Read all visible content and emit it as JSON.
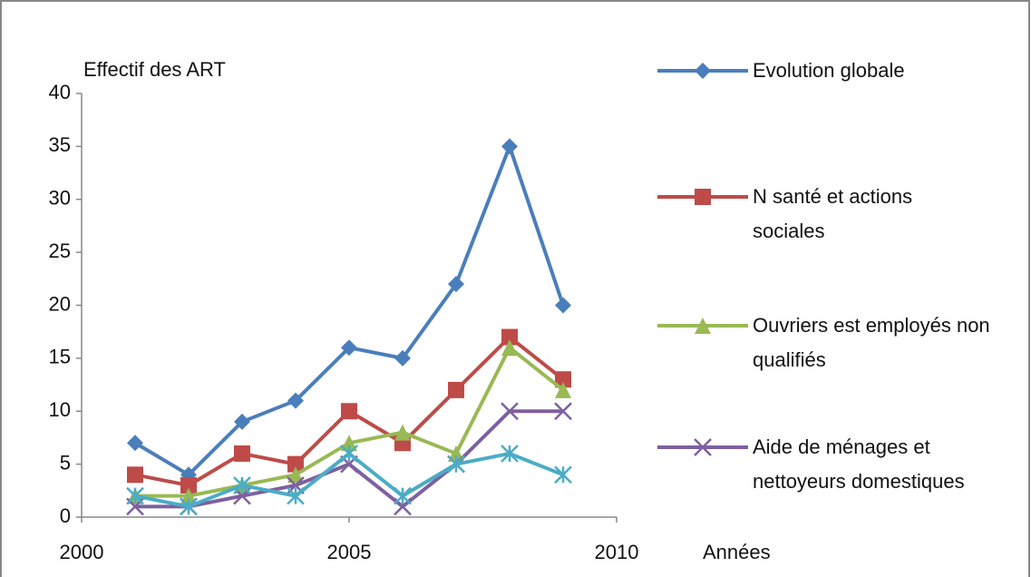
{
  "chart_data": {
    "type": "line",
    "y_label": "Effectif des ART",
    "x_label": "Années",
    "x": [
      2001,
      2002,
      2003,
      2004,
      2005,
      2006,
      2007,
      2008,
      2009
    ],
    "series": [
      {
        "name": "Evolution globale",
        "color": "#4a7ebb",
        "marker": "diamond",
        "values": [
          7,
          4,
          9,
          11,
          16,
          15,
          22,
          35,
          20
        ]
      },
      {
        "name": "N santé et actions sociales",
        "color": "#be4b48",
        "marker": "square",
        "values": [
          4,
          3,
          6,
          5,
          10,
          7,
          12,
          17,
          13
        ]
      },
      {
        "name": "Ouvriers est employés non qualifiés",
        "color": "#98b954",
        "marker": "triangle",
        "values": [
          2,
          2,
          3,
          4,
          7,
          8,
          6,
          16,
          12
        ]
      },
      {
        "name": "Aide de ménages et nettoyeurs domestiques",
        "color": "#7d60a0",
        "marker": "x",
        "values": [
          1,
          1,
          2,
          3,
          5,
          1,
          5,
          10,
          10
        ]
      },
      {
        "color": "#4bacc6",
        "marker": "star",
        "values": [
          2,
          1,
          3,
          2,
          6,
          2,
          5,
          6,
          4
        ]
      }
    ],
    "xlim": [
      2000,
      2010
    ],
    "xticks": [
      2000,
      2005,
      2010
    ],
    "ylim": [
      0,
      40
    ],
    "yticks": [
      0,
      5,
      10,
      15,
      20,
      25,
      30,
      35,
      40
    ],
    "grid": false
  }
}
